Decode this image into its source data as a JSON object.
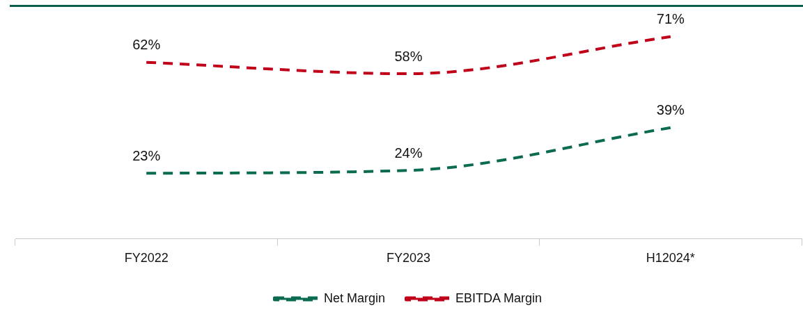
{
  "chart_data": {
    "type": "line",
    "categories": [
      "FY2022",
      "FY2023",
      "H12024*"
    ],
    "series": [
      {
        "name": "Net Margin",
        "color": "#0b6b50",
        "values": [
          23,
          24,
          39
        ],
        "value_labels": [
          "23%",
          "24%",
          "39%"
        ]
      },
      {
        "name": "EBITDA Margin",
        "color": "#c00018",
        "values": [
          62,
          58,
          71
        ],
        "value_labels": [
          "62%",
          "58%",
          "71%"
        ]
      }
    ],
    "tick_labels": "x",
    "line_style": "dashed",
    "marker": "none",
    "legend": "bottom",
    "grid": false
  }
}
